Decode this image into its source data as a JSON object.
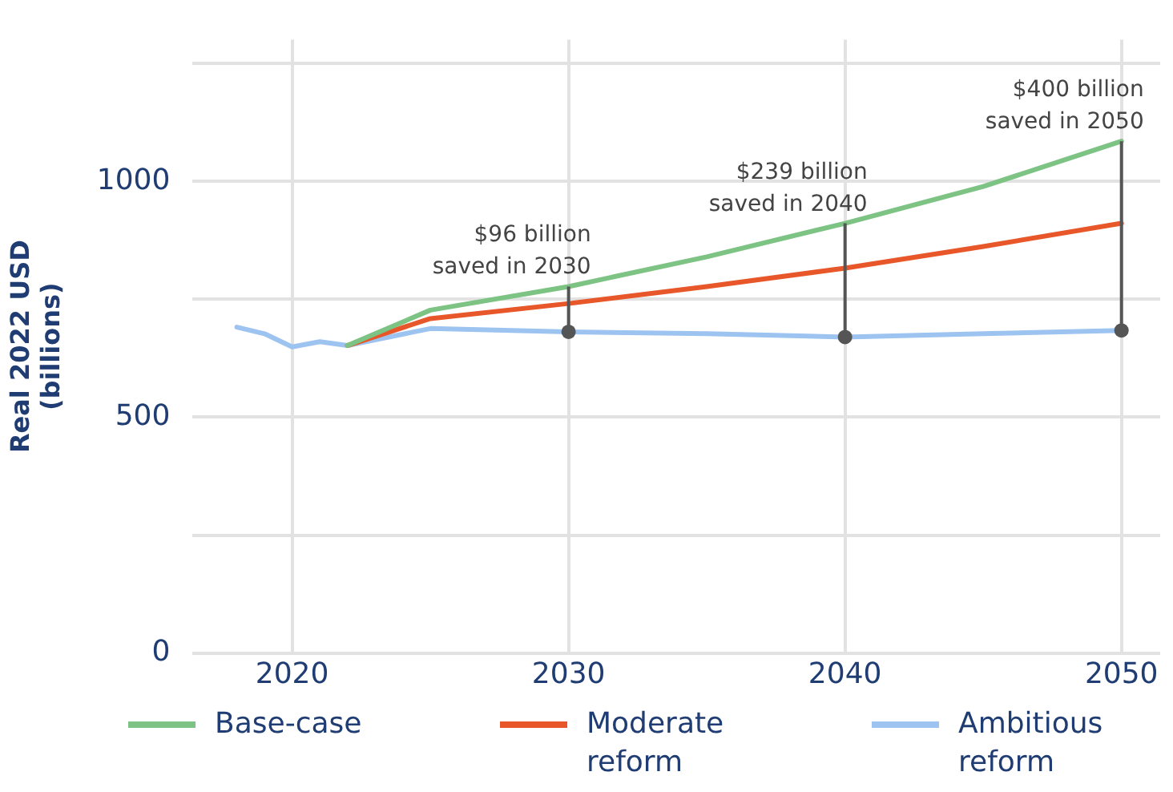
{
  "chart_data": {
    "type": "line",
    "ylabel": "Real 2022 USD\n(billions)",
    "x": [
      2018,
      2019,
      2020,
      2021,
      2022,
      2025,
      2030,
      2035,
      2040,
      2045,
      2050
    ],
    "series": [
      {
        "name": "Base-case",
        "color": "#7dc383",
        "values": [
          null,
          null,
          null,
          null,
          652,
          727,
          777,
          840,
          911,
          989,
          1085
        ]
      },
      {
        "name": "Moderate reform",
        "color": "#e8572a",
        "values": [
          null,
          null,
          null,
          null,
          652,
          709,
          741,
          777,
          816,
          862,
          911
        ]
      },
      {
        "name": "Ambitious reform",
        "color": "#9dc3f0",
        "values": [
          691,
          677,
          649,
          660,
          652,
          688,
          681,
          677,
          670,
          677,
          684
        ]
      }
    ],
    "xlim": [
      2016.4,
      2051.4
    ],
    "xticks": [
      2020,
      2030,
      2040,
      2050
    ],
    "ylim": [
      0,
      1300
    ],
    "yticks": [
      0,
      {
        "value": 250,
        "label": null
      },
      500,
      {
        "value": 750,
        "label": null
      },
      1000,
      {
        "value": 1250,
        "label": null
      }
    ],
    "annotations": [
      {
        "text": "$96 billion\nsaved in 2030",
        "x": 2030,
        "y": 777
      },
      {
        "text": "$239 billion\nsaved in 2040",
        "x": 2040,
        "y": 911
      },
      {
        "text": "$400 billion\nsaved in 2050",
        "x": 2050,
        "y": 1085
      }
    ],
    "grid": true,
    "legend": "bottom",
    "marker": "none",
    "line_style": "solid"
  }
}
